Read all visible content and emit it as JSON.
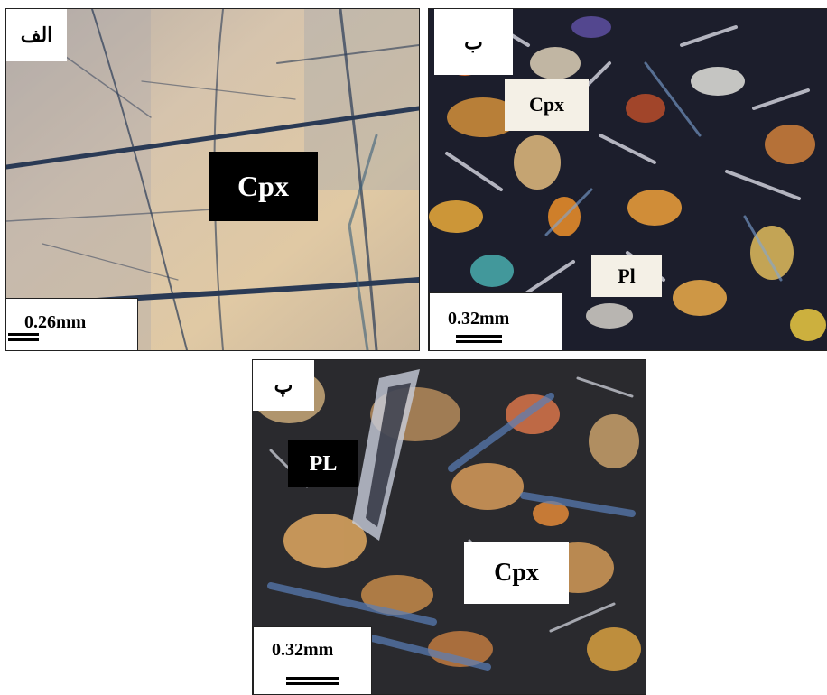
{
  "panels": {
    "a": {
      "tag": "الف",
      "labels": [
        "Cpx"
      ],
      "scale": "0.26mm"
    },
    "b": {
      "tag": "ب",
      "labels": [
        "Cpx",
        "Pl"
      ],
      "scale": "0.32mm"
    },
    "c": {
      "tag": "پ",
      "labels": [
        "PL",
        "Cpx"
      ],
      "scale": "0.32mm"
    }
  }
}
